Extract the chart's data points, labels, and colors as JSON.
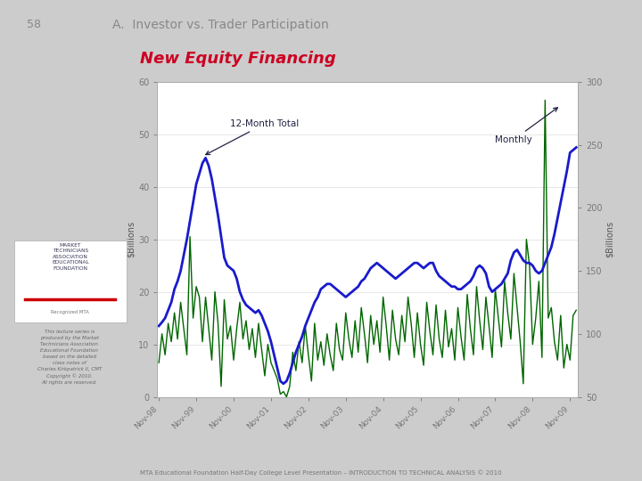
{
  "title_page": "58",
  "title_main": "A.  Investor vs. Trader Participation",
  "title_chart": "New Equity Financing",
  "xlabel_ticks": [
    "Nov-98",
    "Nov-99",
    "Nov-00",
    "Nov-01",
    "Nov-02",
    "Nov-03",
    "Nov-04",
    "Nov-05",
    "Nov-06",
    "Nov-07",
    "Nov-08",
    "Nov-09"
  ],
  "ylabel_left": "$Billions",
  "ylabel_right": "$Billions",
  "ylim_left": [
    0,
    60
  ],
  "ylim_right": [
    50,
    300
  ],
  "yticks_left": [
    0,
    10,
    20,
    30,
    40,
    50,
    60
  ],
  "yticks_right": [
    50,
    100,
    150,
    200,
    250,
    300
  ],
  "annotation_monthly": "Monthly",
  "annotation_12month": "12-Month Total",
  "blue_line_color": "#1a1acc",
  "green_line_color": "#006600",
  "background_color": "#cccccc",
  "chart_bg_color": "#ffffff",
  "title_color": "#cc0022",
  "header_color": "#888888",
  "footer_text": "MTA Educational Foundation Half-Day College Level Presentation – INTRODUCTION TO TECHNICAL ANALYSIS © 2010",
  "blue_data": [
    13.5,
    14.2,
    15.0,
    16.5,
    18.0,
    20.5,
    22.0,
    24.0,
    27.0,
    30.0,
    33.5,
    37.0,
    40.5,
    42.5,
    44.5,
    45.5,
    44.0,
    41.5,
    38.0,
    34.5,
    30.5,
    26.5,
    25.0,
    24.5,
    24.0,
    22.5,
    20.0,
    18.5,
    17.5,
    17.0,
    16.5,
    16.0,
    16.5,
    15.5,
    14.0,
    12.5,
    10.5,
    8.0,
    5.5,
    3.0,
    2.5,
    3.0,
    4.5,
    6.5,
    8.5,
    10.0,
    11.5,
    13.5,
    15.0,
    16.5,
    18.0,
    19.0,
    20.5,
    21.0,
    21.5,
    21.5,
    21.0,
    20.5,
    20.0,
    19.5,
    19.0,
    19.5,
    20.0,
    20.5,
    21.0,
    22.0,
    22.5,
    23.5,
    24.5,
    25.0,
    25.5,
    25.0,
    24.5,
    24.0,
    23.5,
    23.0,
    22.5,
    23.0,
    23.5,
    24.0,
    24.5,
    25.0,
    25.5,
    25.5,
    25.0,
    24.5,
    25.0,
    25.5,
    25.5,
    24.0,
    23.0,
    22.5,
    22.0,
    21.5,
    21.0,
    21.0,
    20.5,
    20.5,
    21.0,
    21.5,
    22.0,
    23.0,
    24.5,
    25.0,
    24.5,
    23.5,
    21.0,
    20.0,
    20.5,
    21.0,
    21.5,
    22.5,
    23.5,
    26.0,
    27.5,
    28.0,
    27.0,
    26.0,
    25.5,
    25.5,
    25.0,
    24.0,
    23.5,
    24.0,
    25.5,
    27.0,
    28.5,
    31.0,
    34.0,
    37.0,
    40.0,
    43.0,
    46.5,
    47.0,
    47.5
  ],
  "green_data": [
    6.5,
    12.0,
    8.0,
    14.0,
    10.5,
    16.0,
    11.0,
    18.0,
    13.0,
    8.0,
    30.5,
    15.0,
    21.0,
    19.0,
    10.5,
    19.0,
    13.0,
    7.0,
    20.0,
    14.0,
    2.0,
    18.5,
    11.0,
    13.5,
    7.0,
    13.0,
    18.0,
    11.0,
    14.5,
    9.0,
    13.0,
    7.5,
    14.0,
    9.0,
    4.0,
    10.0,
    6.5,
    5.0,
    3.5,
    0.5,
    1.0,
    0.0,
    2.0,
    8.5,
    5.0,
    10.5,
    6.5,
    13.5,
    8.0,
    3.0,
    14.0,
    7.0,
    10.5,
    6.0,
    12.0,
    8.0,
    5.0,
    14.0,
    9.0,
    7.0,
    16.0,
    11.0,
    7.5,
    14.5,
    8.5,
    17.0,
    12.0,
    6.5,
    15.5,
    10.0,
    14.5,
    8.5,
    19.0,
    13.5,
    7.0,
    16.5,
    11.0,
    8.0,
    15.5,
    10.5,
    19.0,
    14.0,
    7.5,
    16.0,
    10.0,
    6.0,
    18.0,
    12.5,
    8.0,
    17.5,
    11.0,
    7.5,
    16.5,
    9.5,
    13.0,
    7.0,
    17.0,
    11.5,
    7.0,
    19.5,
    13.0,
    8.0,
    21.0,
    14.5,
    9.0,
    19.0,
    13.5,
    7.5,
    20.5,
    15.0,
    9.5,
    22.0,
    16.0,
    11.0,
    23.5,
    17.0,
    10.5,
    2.5,
    30.0,
    25.0,
    10.0,
    15.0,
    22.0,
    7.5,
    56.5,
    15.0,
    17.0,
    10.5,
    7.0,
    15.5,
    5.5,
    10.0,
    7.0,
    15.5,
    16.5
  ]
}
